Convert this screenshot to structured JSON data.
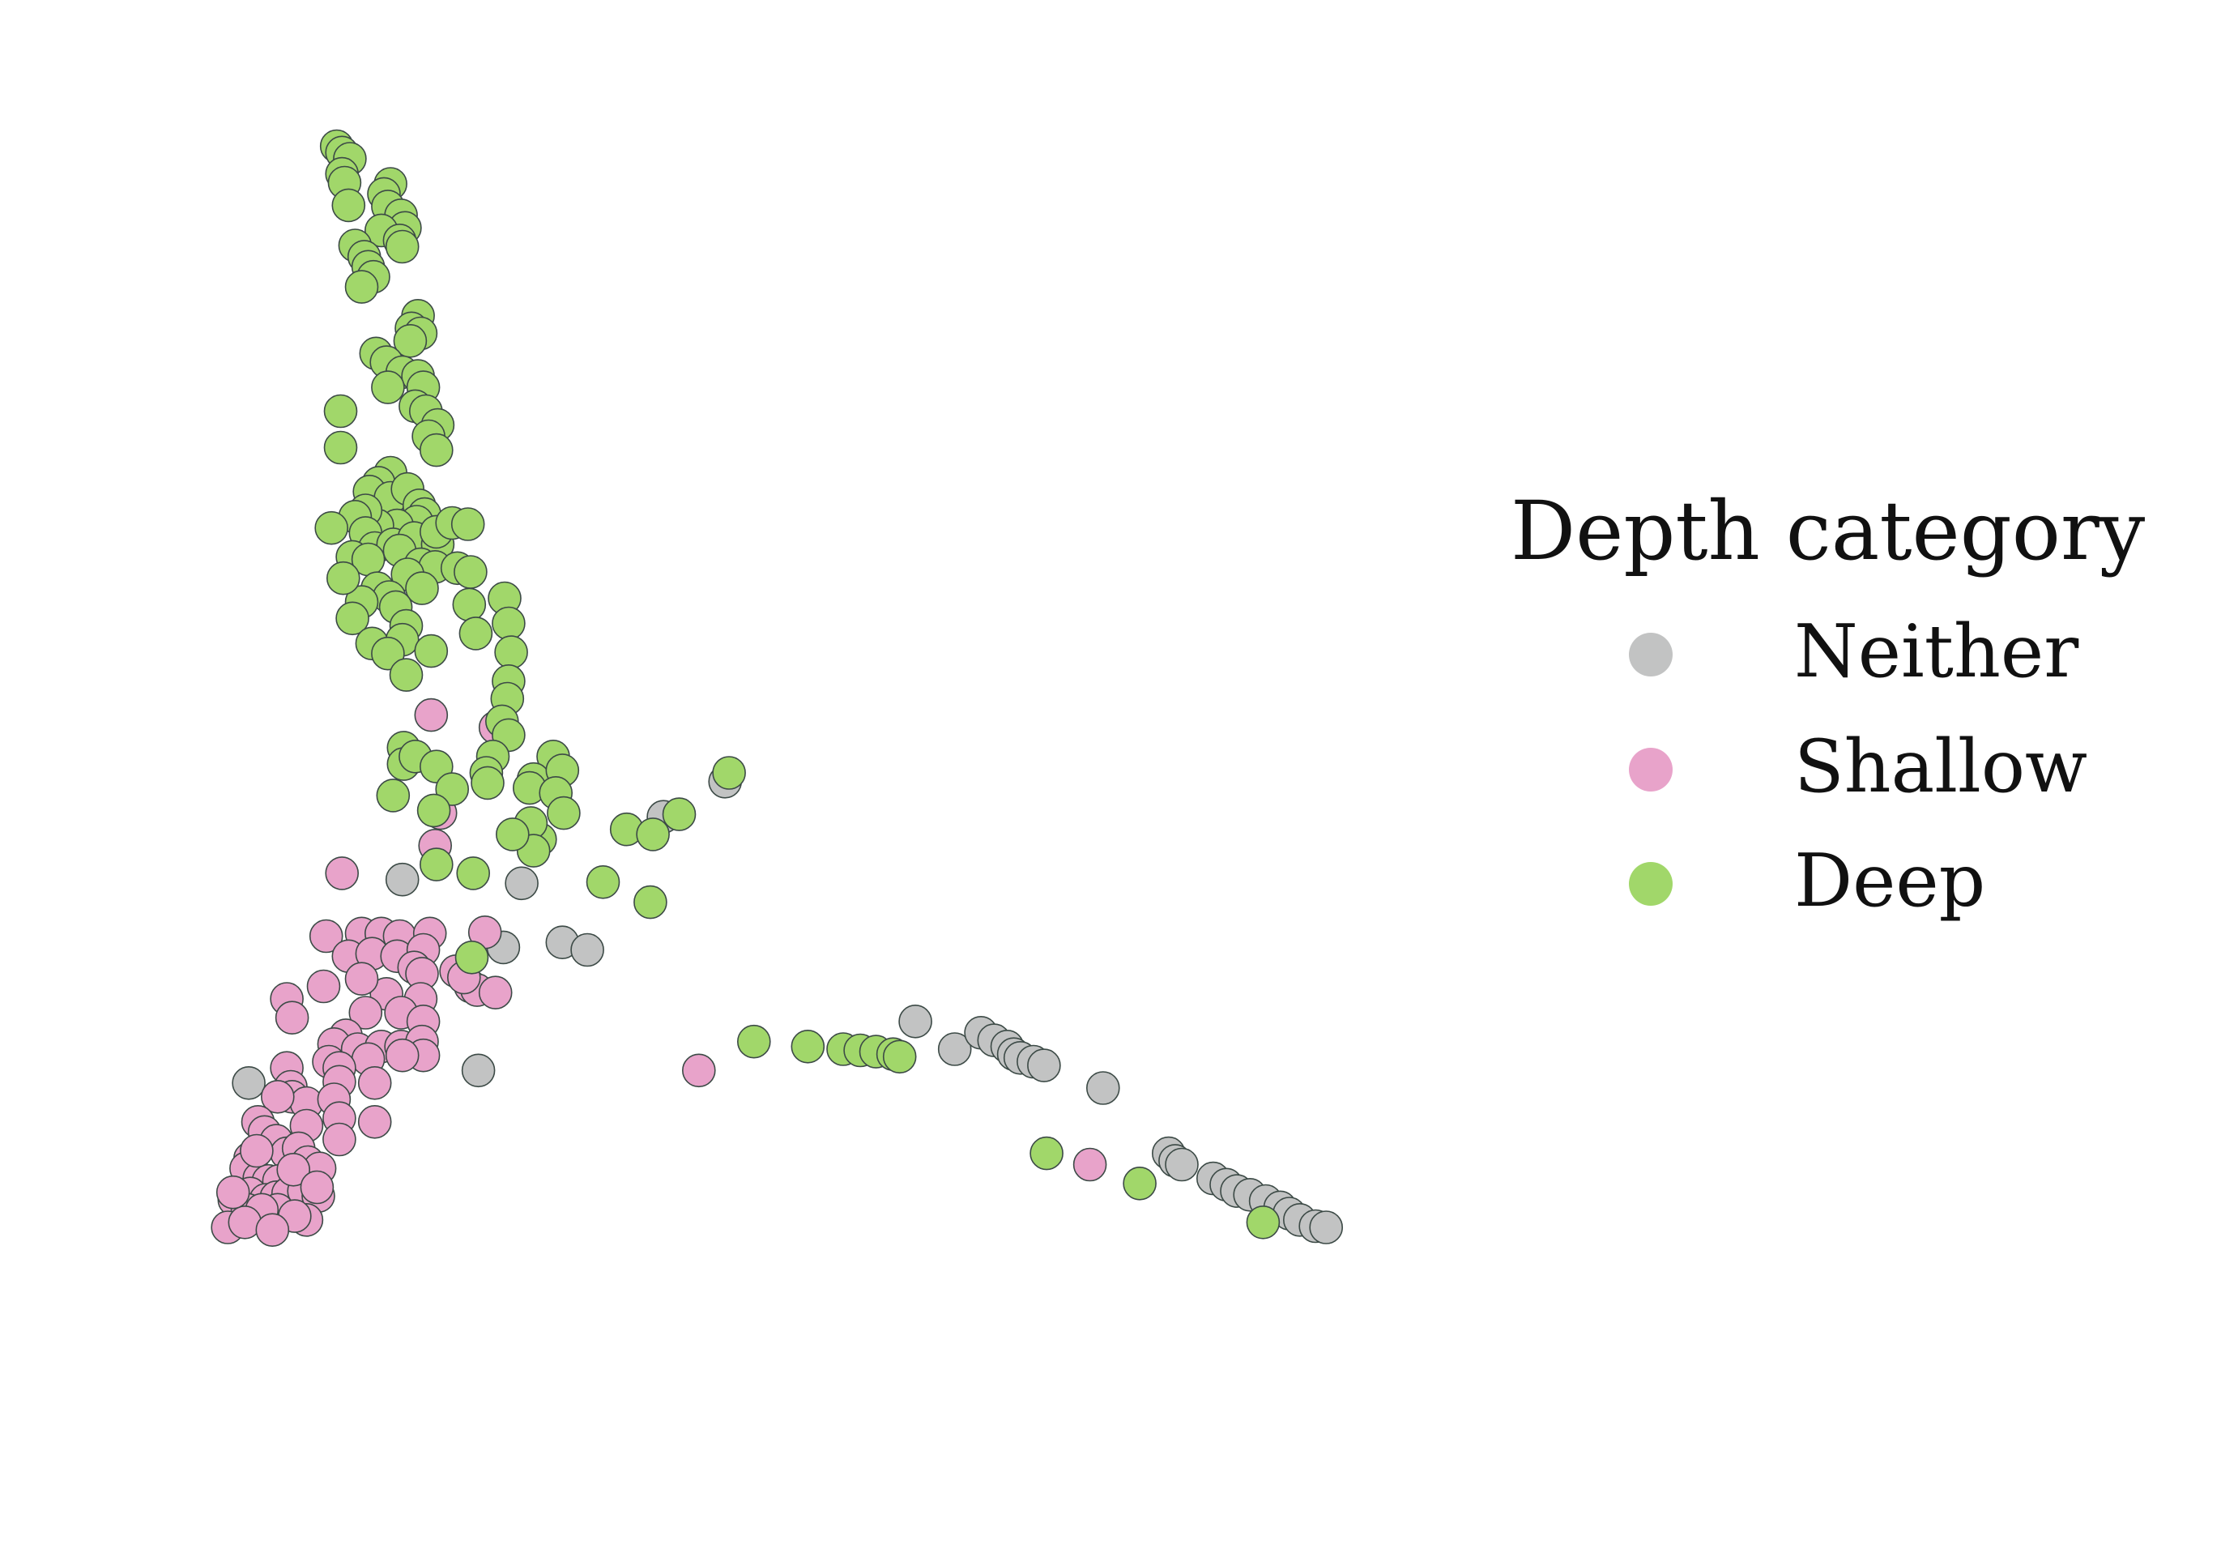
{
  "chart_data": {
    "type": "scatter",
    "title": "",
    "xlabel": "",
    "ylabel": "",
    "xlim": [
      0,
      100
    ],
    "ylim": [
      0,
      100
    ],
    "grid": false,
    "axes_visible": false,
    "legend": {
      "title": "Depth category",
      "placement": "right",
      "entries": [
        {
          "name": "Neither",
          "color": "#c2c3c3"
        },
        {
          "name": "Shallow",
          "color": "#e8a3ca"
        },
        {
          "name": "Deep",
          "color": "#a1d76a"
        }
      ]
    },
    "series": [
      {
        "name": "Neither",
        "color": "#c2c3c3",
        "points": [
          [
            46.0,
            48.4
          ],
          [
            41.3,
            45.6
          ],
          [
            21.4,
            40.6
          ],
          [
            30.5,
            40.3
          ],
          [
            33.6,
            35.6
          ],
          [
            35.5,
            35.0
          ],
          [
            29.1,
            35.2
          ],
          [
            27.2,
            25.4
          ],
          [
            63.5,
            27.1
          ],
          [
            60.5,
            29.3
          ],
          [
            65.5,
            28.4
          ],
          [
            66.5,
            27.8
          ],
          [
            67.5,
            27.3
          ],
          [
            68.0,
            26.7
          ],
          [
            68.5,
            26.4
          ],
          [
            69.5,
            26.1
          ],
          [
            70.3,
            25.8
          ],
          [
            74.8,
            24.0
          ],
          [
            79.8,
            18.8
          ],
          [
            80.3,
            18.2
          ],
          [
            80.8,
            17.9
          ],
          [
            83.2,
            16.8
          ],
          [
            84.2,
            16.3
          ],
          [
            85.0,
            15.8
          ],
          [
            86.0,
            15.5
          ],
          [
            87.2,
            15.0
          ],
          [
            88.3,
            14.5
          ],
          [
            89.0,
            14.0
          ],
          [
            89.8,
            13.5
          ],
          [
            91.0,
            13.0
          ],
          [
            91.8,
            12.9
          ],
          [
            9.7,
            24.4
          ]
        ]
      },
      {
        "name": "Shallow",
        "color": "#e8a3ca",
        "points": [
          [
            23.6,
            53.7
          ],
          [
            28.5,
            52.7
          ],
          [
            24.3,
            45.9
          ],
          [
            23.9,
            43.3
          ],
          [
            16.8,
            41.1
          ],
          [
            27.7,
            36.4
          ],
          [
            15.6,
            36.1
          ],
          [
            18.3,
            36.3
          ],
          [
            19.8,
            36.3
          ],
          [
            21.2,
            36.1
          ],
          [
            23.5,
            36.3
          ],
          [
            17.3,
            34.5
          ],
          [
            19.1,
            34.7
          ],
          [
            21.0,
            34.5
          ],
          [
            23.0,
            35.0
          ],
          [
            22.3,
            33.6
          ],
          [
            25.5,
            33.3
          ],
          [
            26.6,
            32.1
          ],
          [
            27.1,
            31.8
          ],
          [
            28.5,
            31.6
          ],
          [
            26.1,
            32.8
          ],
          [
            22.9,
            33.1
          ],
          [
            20.2,
            31.5
          ],
          [
            18.3,
            32.7
          ],
          [
            15.4,
            32.1
          ],
          [
            22.8,
            31.1
          ],
          [
            18.6,
            30.0
          ],
          [
            21.3,
            30.0
          ],
          [
            23.0,
            29.3
          ],
          [
            12.6,
            31.1
          ],
          [
            13.0,
            29.6
          ],
          [
            17.1,
            28.2
          ],
          [
            16.2,
            27.5
          ],
          [
            18.0,
            27.1
          ],
          [
            19.8,
            27.3
          ],
          [
            21.3,
            27.3
          ],
          [
            22.9,
            27.7
          ],
          [
            23.0,
            26.6
          ],
          [
            21.4,
            26.6
          ],
          [
            18.8,
            26.3
          ],
          [
            15.8,
            26.1
          ],
          [
            16.6,
            25.6
          ],
          [
            12.6,
            25.6
          ],
          [
            12.9,
            24.1
          ],
          [
            13.0,
            23.3
          ],
          [
            16.6,
            24.5
          ],
          [
            14.1,
            22.8
          ],
          [
            16.2,
            23.1
          ],
          [
            19.3,
            24.4
          ],
          [
            11.9,
            23.3
          ],
          [
            14.1,
            21.0
          ],
          [
            16.6,
            21.6
          ],
          [
            16.6,
            19.9
          ],
          [
            19.3,
            21.3
          ],
          [
            10.4,
            21.3
          ],
          [
            10.9,
            20.5
          ],
          [
            11.8,
            19.8
          ],
          [
            12.6,
            18.8
          ],
          [
            13.5,
            19.2
          ],
          [
            14.2,
            18.1
          ],
          [
            15.1,
            17.6
          ],
          [
            9.8,
            18.4
          ],
          [
            9.5,
            17.6
          ],
          [
            10.5,
            16.8
          ],
          [
            11.2,
            16.6
          ],
          [
            12.0,
            16.6
          ],
          [
            9.8,
            15.6
          ],
          [
            11.0,
            15.1
          ],
          [
            11.8,
            15.3
          ],
          [
            12.7,
            15.6
          ],
          [
            13.9,
            15.8
          ],
          [
            15.0,
            15.4
          ],
          [
            8.6,
            15.1
          ],
          [
            9.6,
            14.3
          ],
          [
            11.9,
            14.3
          ],
          [
            10.7,
            14.3
          ],
          [
            14.1,
            13.5
          ],
          [
            13.2,
            13.8
          ],
          [
            8.1,
            12.9
          ],
          [
            9.4,
            13.3
          ],
          [
            11.5,
            12.7
          ],
          [
            44.0,
            25.4
          ],
          [
            73.8,
            17.9
          ],
          [
            8.5,
            15.7
          ],
          [
            10.3,
            19.0
          ],
          [
            13.1,
            17.5
          ],
          [
            14.9,
            16.1
          ]
        ]
      },
      {
        "name": "Deep",
        "color": "#a1d76a",
        "points": [
          [
            16.4,
            99.0
          ],
          [
            16.8,
            98.5
          ],
          [
            17.4,
            98.0
          ],
          [
            16.8,
            96.8
          ],
          [
            17.0,
            96.1
          ],
          [
            20.5,
            96.0
          ],
          [
            20.0,
            95.2
          ],
          [
            17.3,
            94.3
          ],
          [
            20.3,
            94.2
          ],
          [
            21.3,
            93.5
          ],
          [
            21.6,
            92.5
          ],
          [
            19.8,
            92.3
          ],
          [
            21.2,
            91.5
          ],
          [
            17.8,
            91.1
          ],
          [
            21.4,
            91.0
          ],
          [
            18.5,
            90.2
          ],
          [
            18.8,
            89.4
          ],
          [
            19.2,
            88.6
          ],
          [
            18.3,
            87.8
          ],
          [
            22.6,
            85.5
          ],
          [
            22.1,
            84.5
          ],
          [
            22.8,
            84.1
          ],
          [
            22.0,
            83.5
          ],
          [
            19.4,
            82.5
          ],
          [
            20.2,
            81.8
          ],
          [
            21.4,
            81.0
          ],
          [
            22.6,
            80.7
          ],
          [
            20.3,
            79.8
          ],
          [
            23.0,
            79.8
          ],
          [
            22.4,
            78.3
          ],
          [
            23.2,
            77.9
          ],
          [
            24.1,
            76.8
          ],
          [
            16.7,
            77.9
          ],
          [
            23.4,
            75.9
          ],
          [
            24.0,
            74.8
          ],
          [
            16.7,
            75.0
          ],
          [
            20.5,
            73.0
          ],
          [
            19.6,
            72.2
          ],
          [
            18.9,
            71.5
          ],
          [
            20.5,
            71.0
          ],
          [
            21.8,
            71.7
          ],
          [
            22.7,
            70.4
          ],
          [
            23.1,
            69.7
          ],
          [
            22.5,
            69.1
          ],
          [
            21.0,
            68.8
          ],
          [
            19.5,
            68.8
          ],
          [
            18.6,
            70.0
          ],
          [
            17.8,
            69.5
          ],
          [
            18.6,
            68.2
          ],
          [
            16.0,
            68.6
          ],
          [
            19.3,
            67.0
          ],
          [
            20.7,
            67.3
          ],
          [
            22.3,
            67.8
          ],
          [
            17.6,
            66.3
          ],
          [
            18.8,
            66.1
          ],
          [
            21.2,
            66.8
          ],
          [
            24.1,
            67.3
          ],
          [
            24.0,
            68.3
          ],
          [
            25.2,
            69.0
          ],
          [
            26.4,
            68.9
          ],
          [
            22.8,
            65.7
          ],
          [
            23.9,
            65.5
          ],
          [
            21.8,
            64.9
          ],
          [
            22.9,
            63.8
          ],
          [
            19.5,
            63.8
          ],
          [
            20.4,
            63.1
          ],
          [
            18.3,
            62.7
          ],
          [
            16.9,
            64.6
          ],
          [
            17.6,
            61.4
          ],
          [
            20.9,
            62.3
          ],
          [
            21.7,
            60.8
          ],
          [
            19.1,
            59.4
          ],
          [
            21.4,
            59.7
          ],
          [
            20.3,
            58.6
          ],
          [
            23.6,
            58.8
          ],
          [
            25.6,
            65.4
          ],
          [
            26.6,
            65.1
          ],
          [
            26.5,
            62.5
          ],
          [
            27.0,
            60.2
          ],
          [
            29.2,
            63.0
          ],
          [
            29.5,
            61.0
          ],
          [
            29.7,
            58.7
          ],
          [
            21.7,
            56.9
          ],
          [
            29.5,
            56.4
          ],
          [
            29.4,
            55.0
          ],
          [
            29.0,
            53.2
          ],
          [
            29.5,
            52.1
          ],
          [
            21.5,
            51.1
          ],
          [
            21.5,
            49.8
          ],
          [
            22.4,
            50.4
          ],
          [
            24.0,
            49.6
          ],
          [
            25.2,
            47.8
          ],
          [
            28.3,
            50.4
          ],
          [
            27.8,
            49.1
          ],
          [
            27.9,
            48.3
          ],
          [
            20.7,
            47.3
          ],
          [
            23.8,
            46.1
          ],
          [
            32.9,
            50.4
          ],
          [
            31.4,
            48.6
          ],
          [
            31.1,
            47.9
          ],
          [
            31.9,
            43.8
          ],
          [
            31.2,
            45.1
          ],
          [
            33.6,
            49.3
          ],
          [
            33.1,
            47.5
          ],
          [
            31.4,
            42.9
          ],
          [
            29.8,
            44.2
          ],
          [
            26.8,
            41.1
          ],
          [
            24.0,
            41.8
          ],
          [
            26.7,
            34.4
          ],
          [
            38.5,
            44.6
          ],
          [
            40.5,
            44.2
          ],
          [
            42.5,
            45.8
          ],
          [
            46.3,
            49.1
          ],
          [
            33.7,
            45.9
          ],
          [
            36.7,
            40.4
          ],
          [
            40.3,
            38.8
          ],
          [
            48.2,
            27.7
          ],
          [
            52.3,
            27.3
          ],
          [
            55.0,
            27.1
          ],
          [
            56.3,
            27.0
          ],
          [
            57.5,
            26.9
          ],
          [
            58.8,
            26.7
          ],
          [
            59.3,
            26.5
          ],
          [
            70.5,
            18.8
          ],
          [
            77.6,
            16.4
          ],
          [
            87.0,
            13.3
          ]
        ]
      }
    ]
  }
}
